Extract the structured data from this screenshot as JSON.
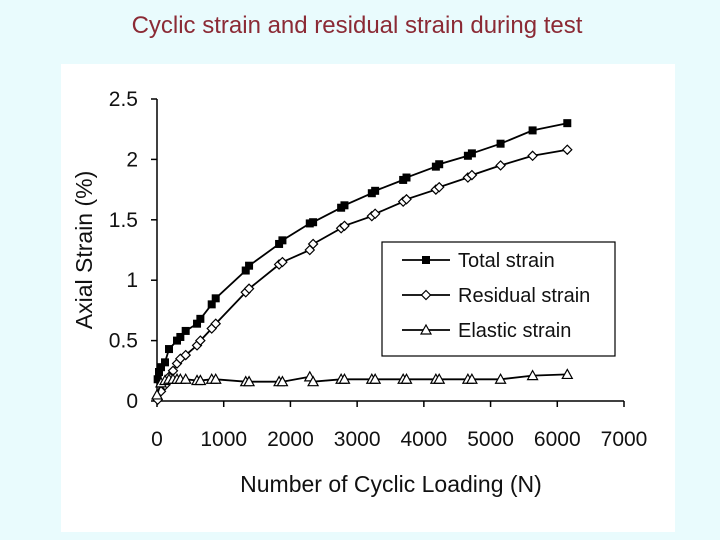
{
  "slide": {
    "title": "Cyclic strain and residual strain during test"
  },
  "chart_data": {
    "type": "line",
    "title": "",
    "xlabel": "Number of Cyclic Loading (N)",
    "ylabel": "Axial Strain (%)",
    "xlim": [
      0,
      7000
    ],
    "ylim": [
      0,
      2.5
    ],
    "xticks": [
      0,
      1000,
      2000,
      3000,
      4000,
      5000,
      6000,
      7000
    ],
    "yticks": [
      0,
      0.5,
      1,
      1.5,
      2,
      2.5
    ],
    "xtick_labels": [
      "0",
      "1000",
      "2000",
      "3000",
      "4000",
      "5000",
      "6000",
      "7000"
    ],
    "ytick_labels": [
      "0",
      "0.5",
      "1",
      "1.5",
      "2",
      "2.5"
    ],
    "grid": false,
    "legend_position": "middle-right",
    "series": [
      {
        "name": "Total strain",
        "marker": "square",
        "color": "#000000",
        "x": [
          10,
          30,
          60,
          120,
          180,
          300,
          350,
          430,
          600,
          650,
          820,
          880,
          1330,
          1380,
          1830,
          1880,
          2290,
          2340,
          2760,
          2810,
          3220,
          3270,
          3690,
          3740,
          4180,
          4230,
          4660,
          4720,
          5150,
          5630,
          6150
        ],
        "y": [
          0.18,
          0.24,
          0.28,
          0.32,
          0.43,
          0.5,
          0.53,
          0.58,
          0.64,
          0.68,
          0.8,
          0.85,
          1.08,
          1.12,
          1.3,
          1.33,
          1.47,
          1.48,
          1.6,
          1.62,
          1.72,
          1.74,
          1.83,
          1.85,
          1.94,
          1.96,
          2.03,
          2.05,
          2.13,
          2.24,
          2.3
        ]
      },
      {
        "name": "Residual strain",
        "marker": "diamond",
        "color": "#000000",
        "x": [
          10,
          60,
          120,
          180,
          240,
          300,
          350,
          430,
          600,
          650,
          820,
          880,
          1330,
          1380,
          1830,
          1880,
          2290,
          2340,
          2760,
          2810,
          3220,
          3270,
          3690,
          3740,
          4180,
          4230,
          4660,
          4720,
          5150,
          5630,
          6150
        ],
        "y": [
          0.01,
          0.08,
          0.13,
          0.2,
          0.25,
          0.31,
          0.35,
          0.38,
          0.46,
          0.5,
          0.6,
          0.64,
          0.9,
          0.93,
          1.13,
          1.15,
          1.25,
          1.3,
          1.43,
          1.45,
          1.53,
          1.55,
          1.65,
          1.67,
          1.75,
          1.77,
          1.85,
          1.87,
          1.95,
          2.03,
          2.08
        ]
      },
      {
        "name": "Elastic strain",
        "marker": "triangle",
        "color": "#000000",
        "x": [
          0,
          60,
          120,
          180,
          240,
          300,
          350,
          430,
          600,
          650,
          820,
          880,
          1330,
          1380,
          1830,
          1880,
          2290,
          2340,
          2760,
          2810,
          3220,
          3270,
          3690,
          3740,
          4180,
          4230,
          4660,
          4720,
          5150,
          5630,
          6150
        ],
        "y": [
          0.05,
          0.15,
          0.17,
          0.18,
          0.18,
          0.18,
          0.18,
          0.18,
          0.17,
          0.17,
          0.18,
          0.18,
          0.16,
          0.16,
          0.16,
          0.16,
          0.2,
          0.16,
          0.18,
          0.18,
          0.18,
          0.18,
          0.18,
          0.18,
          0.18,
          0.18,
          0.18,
          0.18,
          0.18,
          0.21,
          0.22
        ]
      }
    ]
  }
}
